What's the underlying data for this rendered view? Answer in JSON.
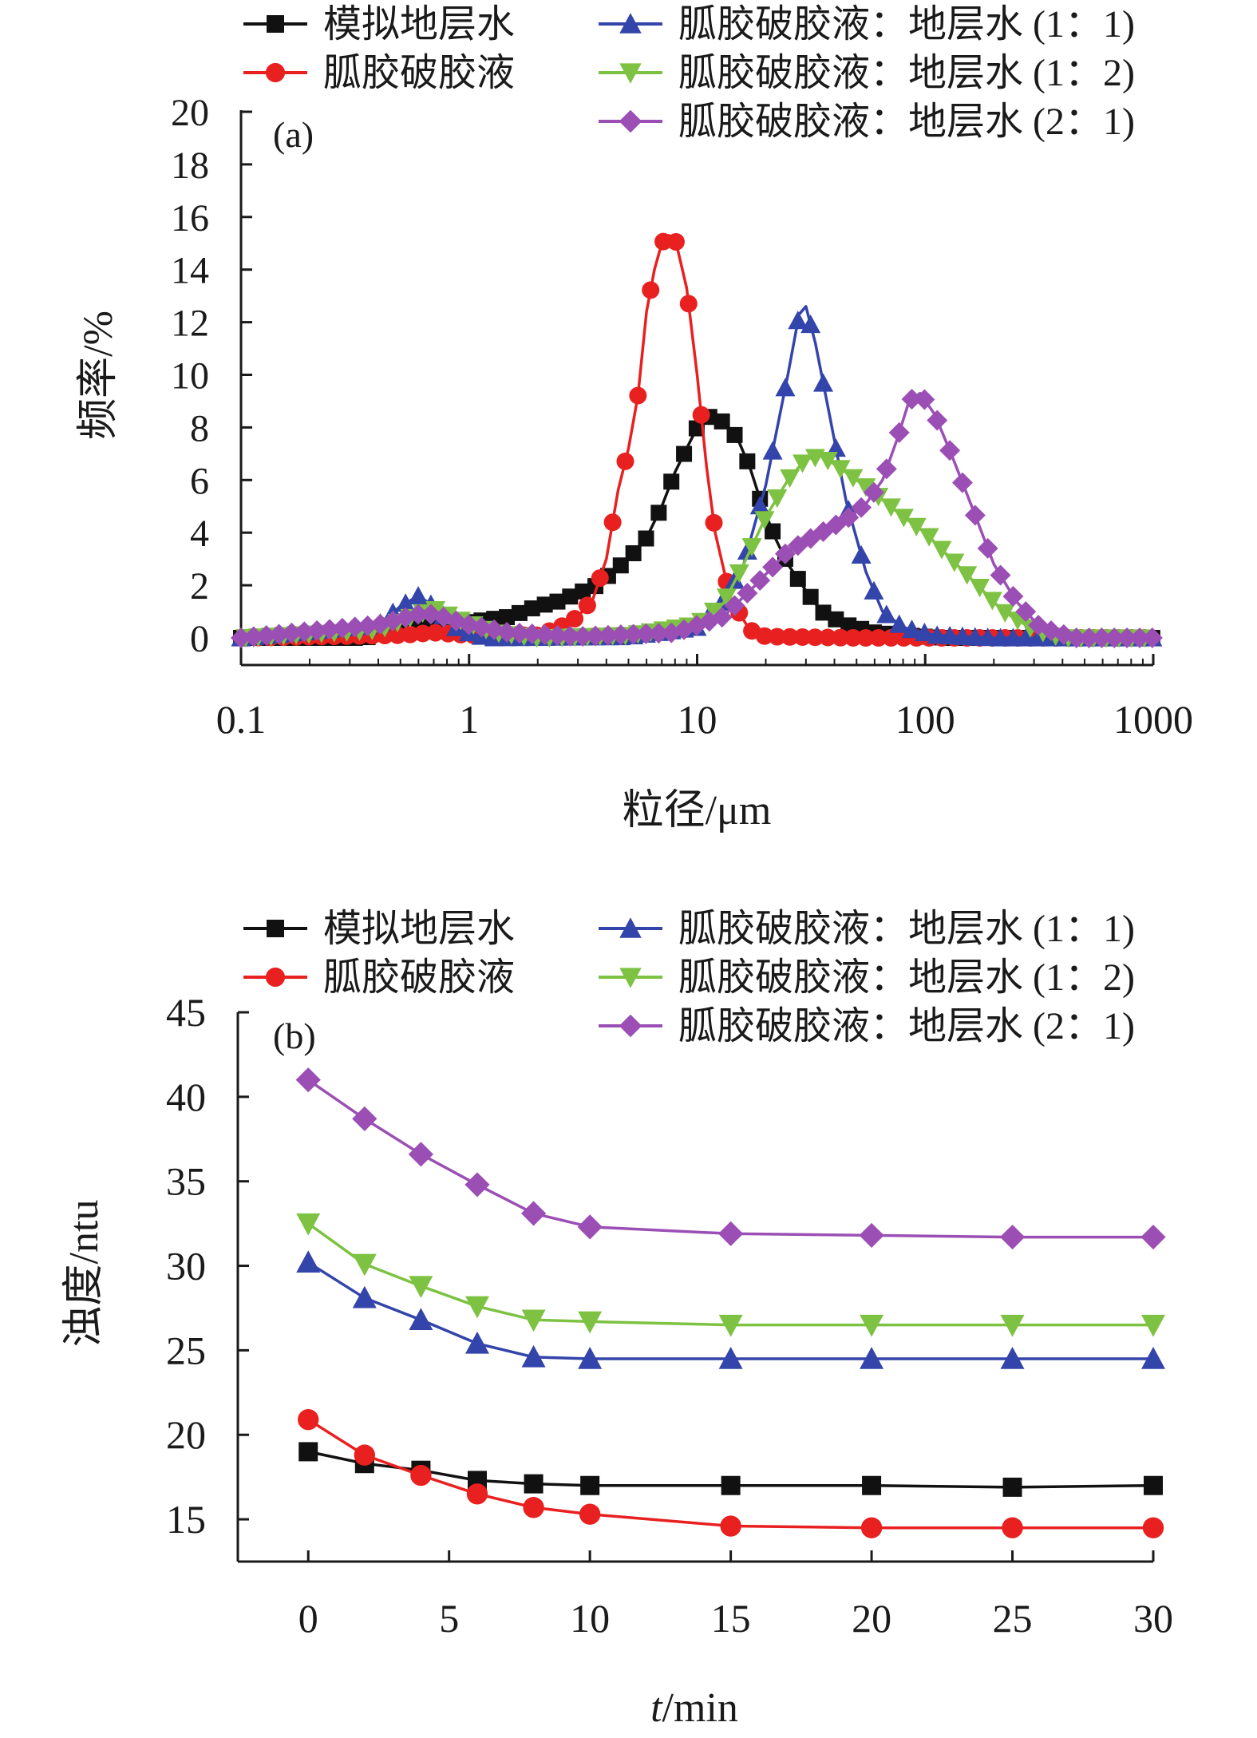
{
  "colors": {
    "black": "#111111",
    "red": "#e8201f",
    "blue": "#3344aa",
    "green": "#7dc242",
    "purple": "#9b4fb5"
  },
  "chart_data": [
    {
      "panel": "(a)",
      "type": "line",
      "x_scale": "log",
      "xlabel": "粒径/μm",
      "ylabel": "频率/%",
      "xlim": [
        0.1,
        1000
      ],
      "ylim": [
        0,
        20
      ],
      "xticks": [
        "0.1",
        "1",
        "10",
        "100",
        "1000"
      ],
      "yticks": [
        "0",
        "2",
        "4",
        "6",
        "8",
        "10",
        "12",
        "14",
        "16",
        "18",
        "20"
      ],
      "grid": false,
      "legend_position": "top",
      "series": [
        {
          "name": "模拟地层水",
          "color": "black",
          "marker": "square",
          "points": [
            [
              0.1,
              0
            ],
            [
              0.35,
              0
            ],
            [
              0.5,
              0.4
            ],
            [
              0.7,
              0.5
            ],
            [
              1.0,
              0.6
            ],
            [
              1.5,
              0.8
            ],
            [
              2.0,
              1.2
            ],
            [
              2.5,
              1.4
            ],
            [
              3.0,
              1.7
            ],
            [
              3.5,
              1.9
            ],
            [
              4.0,
              2.3
            ],
            [
              5.0,
              3.0
            ],
            [
              6.0,
              3.8
            ],
            [
              7.0,
              5.0
            ],
            [
              8.0,
              6.3
            ],
            [
              9.0,
              7.2
            ],
            [
              10.0,
              8.0
            ],
            [
              11.0,
              8.4
            ],
            [
              12.0,
              8.4
            ],
            [
              13.0,
              8.2
            ],
            [
              15.0,
              7.6
            ],
            [
              17.0,
              6.5
            ],
            [
              19.0,
              5.2
            ],
            [
              22.0,
              3.8
            ],
            [
              25.0,
              2.8
            ],
            [
              30.0,
              1.8
            ],
            [
              35.0,
              1.0
            ],
            [
              45.0,
              0.5
            ],
            [
              60.0,
              0.2
            ],
            [
              80.0,
              0.1
            ],
            [
              120.0,
              0
            ],
            [
              1000,
              0
            ]
          ]
        },
        {
          "name": "胍胶破胶液",
          "color": "red",
          "marker": "circle",
          "points": [
            [
              0.1,
              0
            ],
            [
              0.5,
              0.1
            ],
            [
              0.7,
              0.2
            ],
            [
              1.0,
              0.1
            ],
            [
              2.0,
              0.1
            ],
            [
              2.5,
              0.4
            ],
            [
              3.0,
              0.8
            ],
            [
              3.5,
              1.5
            ],
            [
              4.0,
              3.0
            ],
            [
              4.5,
              5.6
            ],
            [
              5.0,
              7.2
            ],
            [
              5.5,
              9.2
            ],
            [
              6.0,
              12.4
            ],
            [
              6.5,
              14.0
            ],
            [
              7.0,
              15.0
            ],
            [
              7.5,
              15.3
            ],
            [
              8.0,
              15.2
            ],
            [
              9.0,
              13.3
            ],
            [
              10.0,
              10.0
            ],
            [
              11.0,
              6.5
            ],
            [
              12.0,
              4.0
            ],
            [
              14.0,
              1.5
            ],
            [
              17.0,
              0.3
            ],
            [
              20.0,
              0.05
            ],
            [
              50.0,
              0
            ],
            [
              1000,
              0
            ]
          ]
        },
        {
          "name": "胍胶破胶液：地层水 (1：1)",
          "color": "blue",
          "marker": "triangle-up",
          "points": [
            [
              0.1,
              0
            ],
            [
              0.4,
              0.5
            ],
            [
              0.5,
              1.2
            ],
            [
              0.6,
              1.6
            ],
            [
              0.7,
              1.2
            ],
            [
              0.9,
              0.3
            ],
            [
              1.2,
              0
            ],
            [
              5.0,
              0.05
            ],
            [
              10.0,
              0.4
            ],
            [
              13.0,
              1.4
            ],
            [
              16.0,
              2.8
            ],
            [
              18.0,
              4.4
            ],
            [
              20.0,
              5.8
            ],
            [
              22.0,
              7.6
            ],
            [
              25.0,
              10.0
            ],
            [
              28.0,
              12.3
            ],
            [
              30.0,
              12.6
            ],
            [
              33.0,
              11.2
            ],
            [
              38.0,
              8.5
            ],
            [
              45.0,
              5.2
            ],
            [
              55.0,
              2.5
            ],
            [
              65.0,
              1.0
            ],
            [
              80.0,
              0.4
            ],
            [
              110.0,
              0.1
            ],
            [
              200.0,
              0
            ],
            [
              1000,
              0
            ]
          ]
        },
        {
          "name": "胍胶破胶液：地层水 (1：2)",
          "color": "green",
          "marker": "triangle-down",
          "points": [
            [
              0.1,
              0
            ],
            [
              0.4,
              0.3
            ],
            [
              0.6,
              0.9
            ],
            [
              0.7,
              1.1
            ],
            [
              0.9,
              0.7
            ],
            [
              1.3,
              0.2
            ],
            [
              2.0,
              0
            ],
            [
              5.0,
              0.1
            ],
            [
              10.0,
              0.5
            ],
            [
              13.0,
              1.3
            ],
            [
              16.0,
              2.8
            ],
            [
              20.0,
              4.6
            ],
            [
              25.0,
              6.0
            ],
            [
              30.0,
              6.8
            ],
            [
              35.0,
              6.9
            ],
            [
              40.0,
              6.6
            ],
            [
              50.0,
              6.0
            ],
            [
              60.0,
              5.5
            ],
            [
              80.0,
              4.6
            ],
            [
              100.0,
              4.0
            ],
            [
              130.0,
              3.0
            ],
            [
              170.0,
              2.0
            ],
            [
              220.0,
              1.0
            ],
            [
              300.0,
              0.3
            ],
            [
              400.0,
              0
            ],
            [
              1000,
              0
            ]
          ]
        },
        {
          "name": "胍胶破胶液：地层水 (2：1)",
          "color": "purple",
          "marker": "diamond",
          "points": [
            [
              0.1,
              0
            ],
            [
              0.4,
              0.5
            ],
            [
              0.6,
              0.9
            ],
            [
              0.7,
              0.9
            ],
            [
              1.0,
              0.5
            ],
            [
              1.5,
              0.2
            ],
            [
              3.0,
              0.05
            ],
            [
              8.0,
              0.2
            ],
            [
              13.0,
              0.8
            ],
            [
              18.0,
              2.0
            ],
            [
              25.0,
              3.3
            ],
            [
              35.0,
              4.0
            ],
            [
              45.0,
              4.5
            ],
            [
              55.0,
              5.1
            ],
            [
              65.0,
              6.0
            ],
            [
              75.0,
              7.5
            ],
            [
              85.0,
              9.0
            ],
            [
              95.0,
              9.3
            ],
            [
              110.0,
              8.5
            ],
            [
              130.0,
              7.0
            ],
            [
              160.0,
              5.0
            ],
            [
              200.0,
              2.8
            ],
            [
              250.0,
              1.4
            ],
            [
              320.0,
              0.4
            ],
            [
              450.0,
              0
            ],
            [
              1000,
              0
            ]
          ]
        }
      ]
    },
    {
      "panel": "(b)",
      "type": "line",
      "xlabel": "t/min",
      "ylabel": "浊度/ntu",
      "xlim": [
        -2.5,
        30
      ],
      "ylim": [
        12.5,
        45
      ],
      "xticks": [
        "0",
        "5",
        "10",
        "15",
        "20",
        "25",
        "30"
      ],
      "yticks": [
        "15",
        "20",
        "25",
        "30",
        "35",
        "40",
        "45"
      ],
      "grid": false,
      "legend_position": "top",
      "x": [
        0,
        2,
        4,
        6,
        8,
        10,
        15,
        20,
        25,
        30
      ],
      "series": [
        {
          "name": "模拟地层水",
          "color": "black",
          "marker": "square",
          "values": [
            19.0,
            18.3,
            17.9,
            17.3,
            17.1,
            17.0,
            17.0,
            17.0,
            16.9,
            17.0
          ]
        },
        {
          "name": "胍胶破胶液",
          "color": "red",
          "marker": "circle",
          "values": [
            20.9,
            18.8,
            17.6,
            16.5,
            15.7,
            15.3,
            14.6,
            14.5,
            14.5,
            14.5
          ]
        },
        {
          "name": "胍胶破胶液：地层水 (1：1)",
          "color": "blue",
          "marker": "triangle-up",
          "values": [
            30.2,
            28.1,
            26.8,
            25.4,
            24.6,
            24.5,
            24.5,
            24.5,
            24.5,
            24.5
          ]
        },
        {
          "name": "胍胶破胶液：地层水 (1：2)",
          "color": "green",
          "marker": "triangle-down",
          "values": [
            32.5,
            30.1,
            28.8,
            27.6,
            26.8,
            26.7,
            26.5,
            26.5,
            26.5,
            26.5
          ]
        },
        {
          "name": "胍胶破胶液：地层水 (2：1)",
          "color": "purple",
          "marker": "diamond",
          "values": [
            41.0,
            38.7,
            36.6,
            34.8,
            33.1,
            32.3,
            31.9,
            31.8,
            31.7,
            31.7
          ]
        }
      ]
    }
  ]
}
